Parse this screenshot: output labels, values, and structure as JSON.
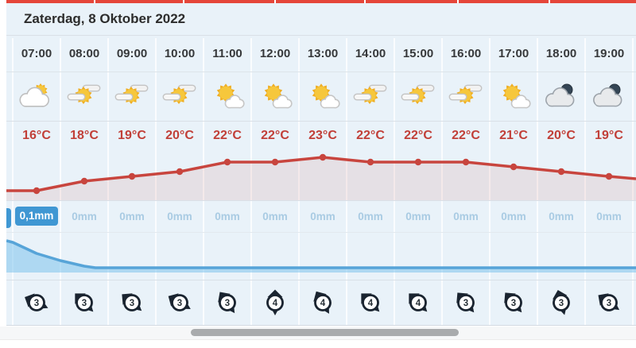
{
  "header": {
    "date_label": "Zaterdag, 8 Oktober 2022"
  },
  "columns": [
    {
      "time": "07:00",
      "icon": "sun-behind-cloud",
      "temp": "16°C",
      "precip": "0,1mm",
      "precip_highlight": true,
      "wind_bft": "3",
      "wind_dir_deg": -65
    },
    {
      "time": "08:00",
      "icon": "sun-with-clouds",
      "temp": "18°C",
      "precip": "0mm",
      "precip_highlight": false,
      "wind_bft": "3",
      "wind_dir_deg": -45
    },
    {
      "time": "09:00",
      "icon": "sun-with-clouds",
      "temp": "19°C",
      "precip": "0mm",
      "precip_highlight": false,
      "wind_bft": "3",
      "wind_dir_deg": -50
    },
    {
      "time": "10:00",
      "icon": "sun-with-clouds",
      "temp": "20°C",
      "precip": "0mm",
      "precip_highlight": false,
      "wind_bft": "3",
      "wind_dir_deg": -60
    },
    {
      "time": "11:00",
      "icon": "sunny-small-cloud",
      "temp": "22°C",
      "precip": "0mm",
      "precip_highlight": false,
      "wind_bft": "3",
      "wind_dir_deg": -35
    },
    {
      "time": "12:00",
      "icon": "sunny-small-cloud",
      "temp": "22°C",
      "precip": "0mm",
      "precip_highlight": false,
      "wind_bft": "4",
      "wind_dir_deg": 0
    },
    {
      "time": "13:00",
      "icon": "sunny-small-cloud",
      "temp": "23°C",
      "precip": "0mm",
      "precip_highlight": false,
      "wind_bft": "4",
      "wind_dir_deg": -30
    },
    {
      "time": "14:00",
      "icon": "sun-with-clouds",
      "temp": "22°C",
      "precip": "0mm",
      "precip_highlight": false,
      "wind_bft": "4",
      "wind_dir_deg": -45
    },
    {
      "time": "15:00",
      "icon": "sun-with-clouds",
      "temp": "22°C",
      "precip": "0mm",
      "precip_highlight": false,
      "wind_bft": "4",
      "wind_dir_deg": -45
    },
    {
      "time": "16:00",
      "icon": "sun-with-clouds",
      "temp": "22°C",
      "precip": "0mm",
      "precip_highlight": false,
      "wind_bft": "3",
      "wind_dir_deg": -40
    },
    {
      "time": "17:00",
      "icon": "sunny-small-cloud",
      "temp": "21°C",
      "precip": "0mm",
      "precip_highlight": false,
      "wind_bft": "3",
      "wind_dir_deg": -40
    },
    {
      "time": "18:00",
      "icon": "moon-behind-cloud",
      "temp": "20°C",
      "precip": "0mm",
      "precip_highlight": false,
      "wind_bft": "3",
      "wind_dir_deg": -15
    },
    {
      "time": "19:00",
      "icon": "moon-behind-cloud",
      "temp": "19°C",
      "precip": "0mm",
      "precip_highlight": false,
      "wind_bft": "3",
      "wind_dir_deg": -55
    }
  ],
  "chart_data": [
    {
      "type": "line",
      "name": "temperature",
      "unit": "°C",
      "x": [
        "07:00",
        "08:00",
        "09:00",
        "10:00",
        "11:00",
        "12:00",
        "13:00",
        "14:00",
        "15:00",
        "16:00",
        "17:00",
        "18:00",
        "19:00"
      ],
      "values": [
        16,
        18,
        19,
        20,
        22,
        22,
        23,
        22,
        22,
        22,
        21,
        20,
        19
      ],
      "line_color": "#c8453e",
      "fill_color": "rgba(200,69,60,0.10)"
    },
    {
      "type": "area",
      "name": "precipitation",
      "unit": "mm",
      "x": [
        "07:00",
        "08:00",
        "09:00",
        "10:00",
        "11:00",
        "12:00",
        "13:00",
        "14:00",
        "15:00",
        "16:00",
        "17:00",
        "18:00",
        "19:00"
      ],
      "values": [
        0.1,
        0,
        0,
        0,
        0,
        0,
        0,
        0,
        0,
        0,
        0,
        0,
        0
      ],
      "line_color": "#57a4d8",
      "fill_color": "rgba(125,195,236,0.55)"
    }
  ],
  "colors": {
    "accent_bar": "#e5463a",
    "panel_bg": "#e9f2f9",
    "temp_text": "#c13f38",
    "precip_badge_bg": "#3f97d3",
    "precip_zero_text": "#a9cbe3",
    "wind_icon": "#1a2430"
  }
}
